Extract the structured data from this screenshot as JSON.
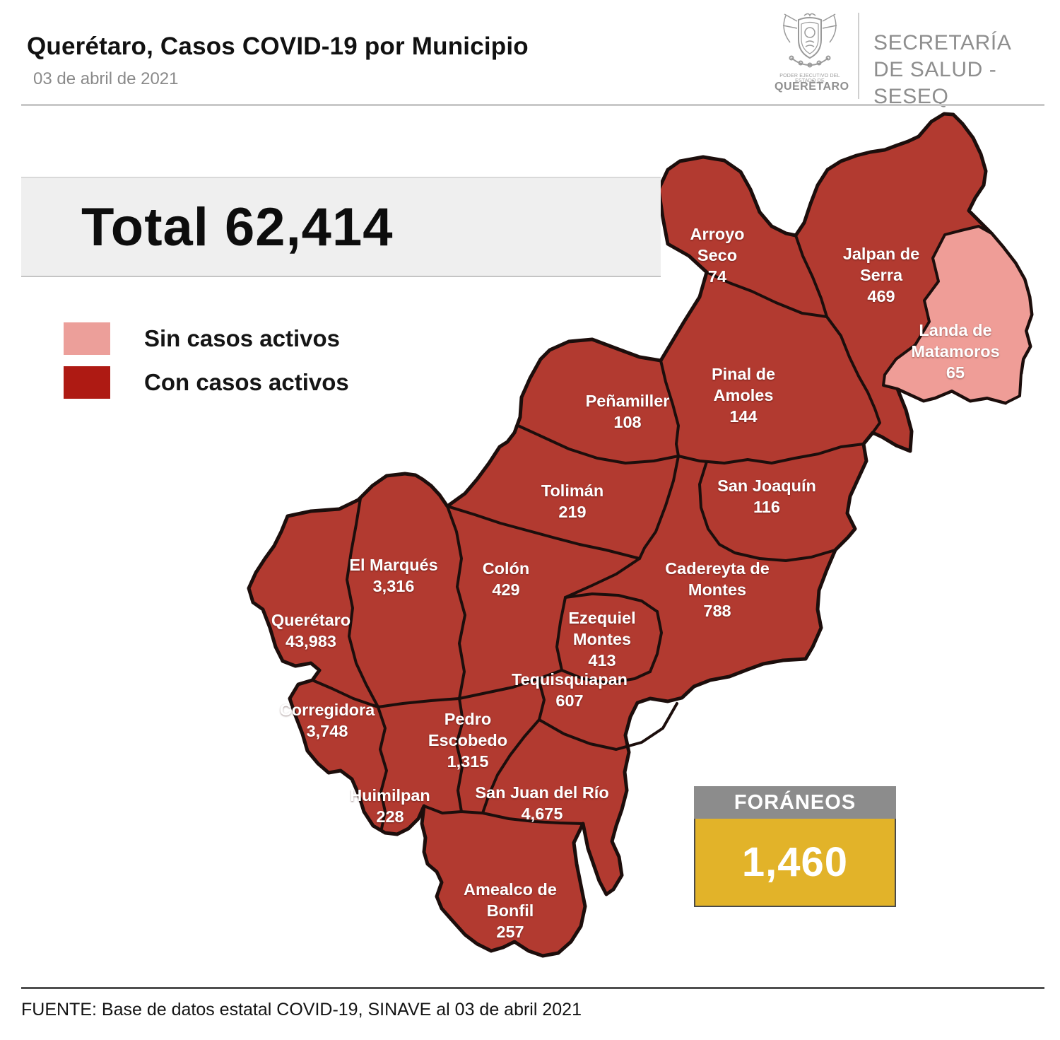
{
  "header": {
    "title": "Querétaro, Casos COVID-19 por Municipio",
    "date": "03 de abril de 2021",
    "logo": {
      "crest_caption_small": "PODER EJECUTIVO DEL ESTADO DE",
      "crest_caption": "QUERÉTARO",
      "org_line1": "SECRETARÍA",
      "org_line2": "DE SALUD - SESEQ"
    }
  },
  "summary": {
    "total_label": "Total",
    "total_value": "62,414"
  },
  "legend": {
    "items": [
      {
        "label": "Sin casos activos",
        "color": "#ec9f9a"
      },
      {
        "label": "Con casos activos",
        "color": "#ae1a13"
      }
    ]
  },
  "map": {
    "colors": {
      "active_fill": "#b23a30",
      "inactive_fill": "#ef9d97",
      "border": "#1c0e0c"
    },
    "municipalities": [
      {
        "name": "Arroyo Seco",
        "cases": "74",
        "active": true
      },
      {
        "name": "Jalpan de Serra",
        "cases": "469",
        "active": true
      },
      {
        "name": "Landa de Matamoros",
        "cases": "65",
        "active": false
      },
      {
        "name": "Pinal de Amoles",
        "cases": "144",
        "active": true
      },
      {
        "name": "Peñamiller",
        "cases": "108",
        "active": true
      },
      {
        "name": "San Joaquín",
        "cases": "116",
        "active": true
      },
      {
        "name": "Tolimán",
        "cases": "219",
        "active": true
      },
      {
        "name": "Cadereyta de Montes",
        "cases": "788",
        "active": true
      },
      {
        "name": "El Marqués",
        "cases": "3,316",
        "active": true
      },
      {
        "name": "Colón",
        "cases": "429",
        "active": true
      },
      {
        "name": "Querétaro",
        "cases": "43,983",
        "active": true
      },
      {
        "name": "Ezequiel Montes",
        "cases": "413",
        "active": true
      },
      {
        "name": "Tequisquiapan",
        "cases": "607",
        "active": true
      },
      {
        "name": "Corregidora",
        "cases": "3,748",
        "active": true
      },
      {
        "name": "Pedro Escobedo",
        "cases": "1,315",
        "active": true
      },
      {
        "name": "Huimilpan",
        "cases": "228",
        "active": true
      },
      {
        "name": "San Juan del Río",
        "cases": "4,675",
        "active": true
      },
      {
        "name": "Amealco de Bonfil",
        "cases": "257",
        "active": true
      }
    ]
  },
  "foraneos": {
    "label": "FORÁNEOS",
    "value": "1,460"
  },
  "footer": {
    "source": "FUENTE:  Base de datos estatal COVID-19,  SINAVE  al 03 de abril 2021"
  }
}
